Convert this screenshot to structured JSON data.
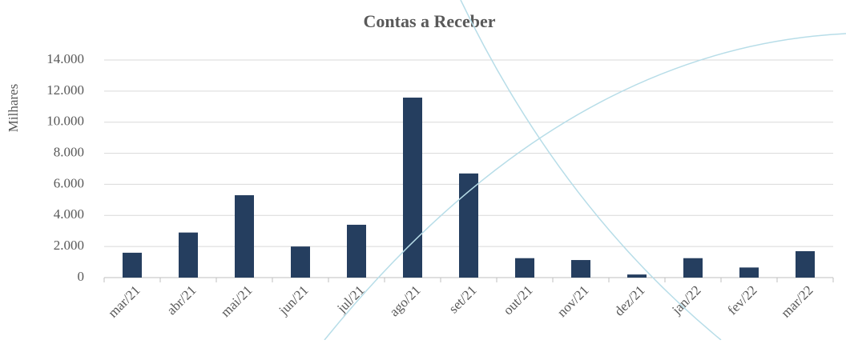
{
  "chart_data": {
    "type": "bar",
    "title": "Contas a Receber",
    "y_label": "Milhares",
    "categories": [
      "mar/21",
      "abr/21",
      "mai/21",
      "jun/21",
      "jul/21",
      "ago/21",
      "set/21",
      "out/21",
      "nov/21",
      "dez/21",
      "jan/22",
      "fev/22",
      "mar/22"
    ],
    "values": [
      1600,
      2900,
      5300,
      2000,
      3400,
      11580,
      6700,
      1250,
      1130,
      200,
      1250,
      650,
      1700
    ],
    "color": "#253e5f",
    "ylim": [
      0,
      14000
    ],
    "yticks": [
      0,
      {
        "value": 2000,
        "label": "2.000"
      },
      {
        "value": 4000,
        "label": "4.000"
      },
      {
        "value": 6000,
        "label": "6.000"
      },
      {
        "value": 8000,
        "label": "8.000"
      },
      {
        "value": 10000,
        "label": "10.000"
      },
      {
        "value": 12000,
        "label": "12.000"
      },
      {
        "value": 14000,
        "label": "14.000"
      }
    ],
    "grid": true
  }
}
